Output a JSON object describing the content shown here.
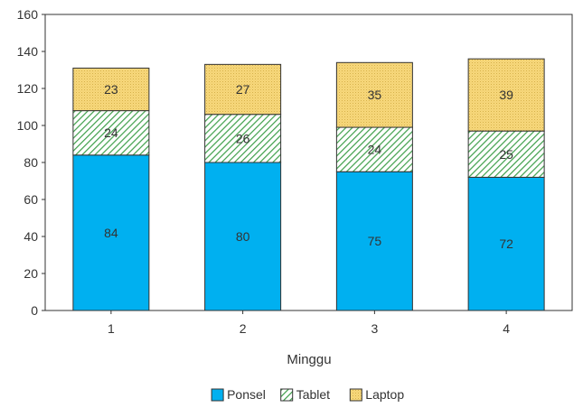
{
  "chart_data": {
    "type": "bar",
    "stacked": true,
    "title": "",
    "xlabel": "Minggu",
    "ylabel": "",
    "categories": [
      "1",
      "2",
      "3",
      "4"
    ],
    "ylim": [
      0,
      160
    ],
    "yticks": [
      "0",
      "20",
      "40",
      "60",
      "80",
      "100",
      "120",
      "140",
      "160"
    ],
    "grid": false,
    "legend_position": "bottom",
    "series": [
      {
        "name": "Ponsel",
        "values": [
          84,
          80,
          75,
          72
        ],
        "color": "#00b0f0",
        "pattern": "solid"
      },
      {
        "name": "Tablet",
        "values": [
          24,
          26,
          24,
          25
        ],
        "color": "#5cbf6a",
        "pattern": "diagonal-hatch"
      },
      {
        "name": "Laptop",
        "values": [
          23,
          27,
          35,
          39
        ],
        "color": "#f5d76e",
        "pattern": "dotted"
      }
    ]
  }
}
